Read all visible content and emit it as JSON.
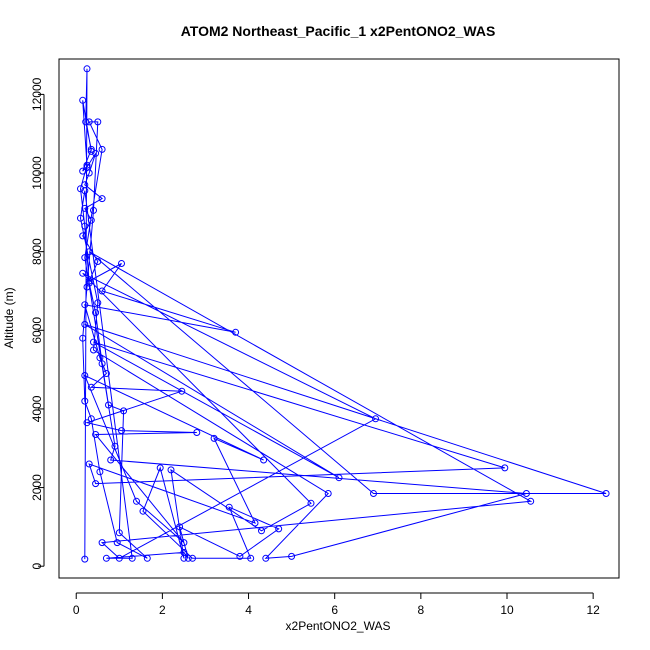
{
  "chart_data": {
    "type": "scatter",
    "title": "ATOM2 Northeast_Pacific_1 x2PentONO2_WAS",
    "xlabel": "x2PentONO2_WAS",
    "ylabel": "Altitude (m)",
    "xlim": [
      -0.4,
      12.6
    ],
    "ylim": [
      -300,
      12900
    ],
    "xticks": [
      0,
      2,
      4,
      6,
      8,
      10,
      12
    ],
    "yticks": [
      0,
      2000,
      4000,
      6000,
      8000,
      10000,
      12000
    ],
    "grid": false,
    "legend": "none",
    "series_color": "#0000ff",
    "series": [
      {
        "points": [
          [
            0.2,
            180
          ],
          [
            0.25,
            12650
          ],
          [
            0.22,
            11300
          ],
          [
            0.35,
            10600
          ],
          [
            0.15,
            10050
          ],
          [
            0.25,
            10150
          ],
          [
            0.45,
            10500
          ],
          [
            0.3,
            10000
          ],
          [
            0.2,
            9700
          ],
          [
            0.6,
            9350
          ],
          [
            0.2,
            9100
          ],
          [
            0.35,
            8800
          ],
          [
            0.15,
            8400
          ],
          [
            0.5,
            7750
          ],
          [
            0.3,
            7250
          ],
          [
            1.05,
            7700
          ],
          [
            0.6,
            7000
          ],
          [
            3.7,
            5950
          ],
          [
            0.2,
            6650
          ],
          [
            0.55,
            5300
          ],
          [
            0.7,
            4900
          ],
          [
            0.35,
            4550
          ],
          [
            2.45,
            4450
          ],
          [
            0.25,
            3650
          ],
          [
            1.05,
            3450
          ],
          [
            2.8,
            3400
          ],
          [
            0.45,
            3350
          ],
          [
            2.5,
            600
          ],
          [
            1.4,
            1650
          ],
          [
            0.2,
            4850
          ],
          [
            4.35,
            2700
          ],
          [
            3.2,
            3250
          ],
          [
            4.15,
            1100
          ],
          [
            0.3,
            2600
          ],
          [
            0.45,
            2100
          ],
          [
            9.95,
            2500
          ],
          [
            0.4,
            5700
          ],
          [
            6.1,
            2250
          ],
          [
            0.2,
            6150
          ],
          [
            12.3,
            1850
          ],
          [
            6.9,
            1850
          ],
          [
            0.3,
            8000
          ],
          [
            10.55,
            1650
          ],
          [
            0.6,
            600
          ],
          [
            1.0,
            200
          ],
          [
            6.95,
            3750
          ],
          [
            0.15,
            7450
          ],
          [
            5.45,
            1600
          ],
          [
            4.3,
            900
          ],
          [
            2.2,
            2450
          ],
          [
            2.5,
            200
          ],
          [
            1.95,
            2500
          ],
          [
            1.55,
            1400
          ],
          [
            2.7,
            200
          ],
          [
            4.05,
            200
          ],
          [
            3.55,
            1500
          ],
          [
            4.7,
            950
          ],
          [
            3.8,
            250
          ],
          [
            2.4,
            1000
          ],
          [
            2.6,
            200
          ],
          [
            2.5,
            350
          ],
          [
            0.7,
            200
          ],
          [
            1.3,
            200
          ],
          [
            0.2,
            9550
          ],
          [
            0.1,
            8850
          ],
          [
            0.5,
            6700
          ],
          [
            0.4,
            5500
          ],
          [
            5.85,
            1850
          ],
          [
            4.4,
            200
          ],
          [
            5.0,
            250
          ],
          [
            10.45,
            1850
          ],
          [
            0.8,
            2700
          ],
          [
            0.9,
            3050
          ],
          [
            0.2,
            7850
          ],
          [
            0.6,
            10600
          ],
          [
            0.3,
            11300
          ],
          [
            0.5,
            11300
          ],
          [
            0.4,
            9050
          ],
          [
            0.25,
            7100
          ],
          [
            0.15,
            5800
          ],
          [
            0.2,
            4200
          ],
          [
            0.35,
            3750
          ],
          [
            0.55,
            2400
          ],
          [
            0.95,
            600
          ],
          [
            1.65,
            200
          ],
          [
            1.0,
            850
          ],
          [
            1.1,
            3950
          ],
          [
            0.75,
            4100
          ],
          [
            0.6,
            5150
          ],
          [
            0.45,
            6450
          ],
          [
            0.3,
            7200
          ],
          [
            0.2,
            8650
          ],
          [
            0.1,
            9600
          ],
          [
            0.25,
            10200
          ],
          [
            0.15,
            11850
          ],
          [
            0.35,
            10550
          ]
        ]
      }
    ]
  }
}
